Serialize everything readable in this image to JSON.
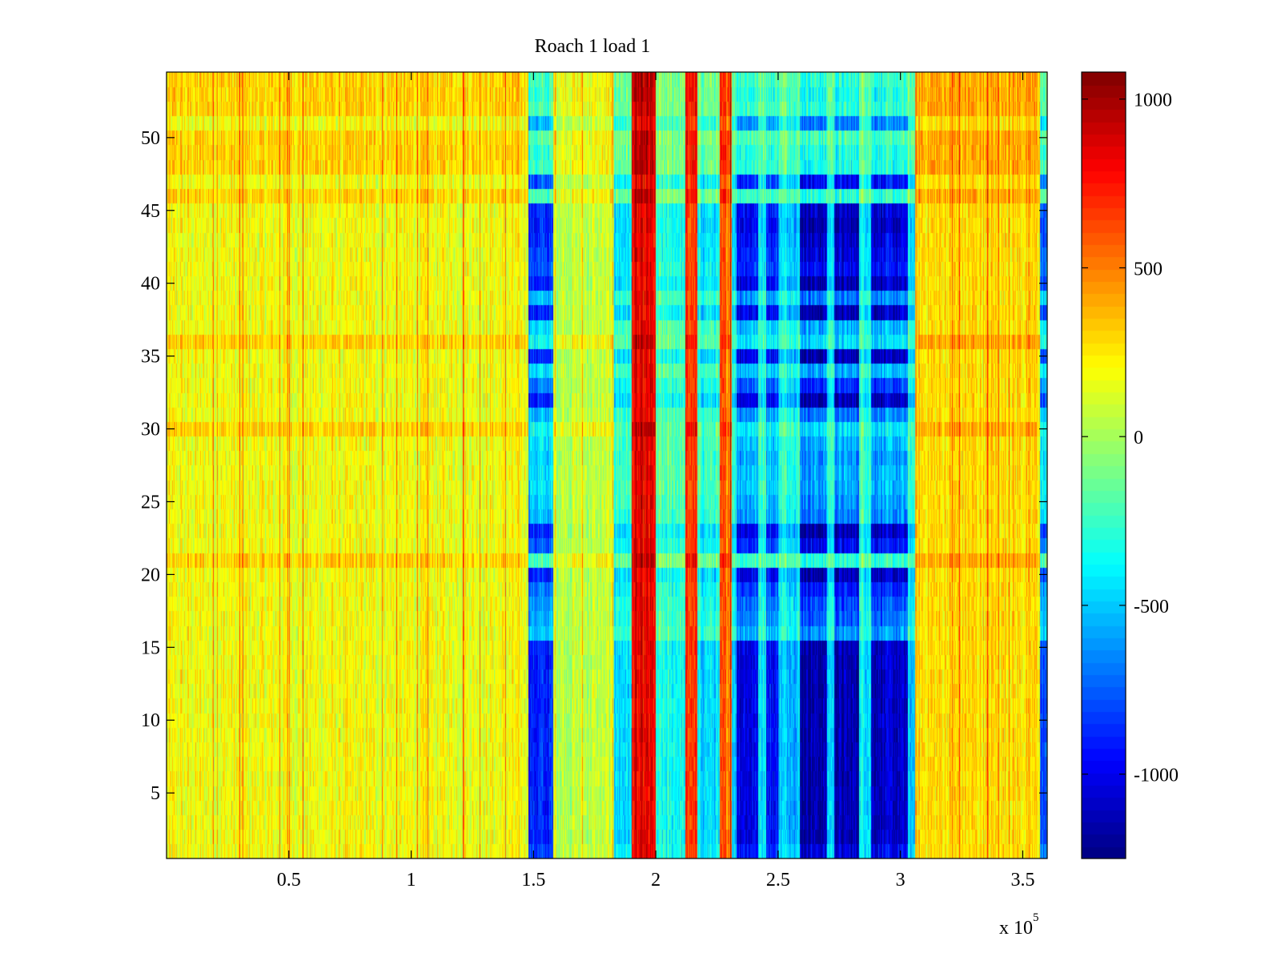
{
  "chart_data": {
    "type": "heatmap",
    "title": "Roach 1 load 1",
    "xlabel": "",
    "ylabel": "",
    "xlim": [
      0,
      360000
    ],
    "ylim": [
      0.5,
      54.5
    ],
    "x_exponent_label": "x 10",
    "x_exponent_power": "5",
    "x_ticks": [
      {
        "value": 50000,
        "label": "0.5"
      },
      {
        "value": 100000,
        "label": "1"
      },
      {
        "value": 150000,
        "label": "1.5"
      },
      {
        "value": 200000,
        "label": "2"
      },
      {
        "value": 250000,
        "label": "2.5"
      },
      {
        "value": 300000,
        "label": "3"
      },
      {
        "value": 350000,
        "label": "3.5"
      }
    ],
    "y_ticks": [
      {
        "value": 5,
        "label": "5"
      },
      {
        "value": 10,
        "label": "10"
      },
      {
        "value": 15,
        "label": "15"
      },
      {
        "value": 20,
        "label": "20"
      },
      {
        "value": 25,
        "label": "25"
      },
      {
        "value": 30,
        "label": "30"
      },
      {
        "value": 35,
        "label": "35"
      },
      {
        "value": 40,
        "label": "40"
      },
      {
        "value": 45,
        "label": "45"
      },
      {
        "value": 50,
        "label": "50"
      }
    ],
    "rows": 54,
    "colormap": "jet",
    "clim": [
      -1250,
      1080
    ],
    "colorbar_ticks": [
      {
        "value": 1000,
        "label": "1000"
      },
      {
        "value": 500,
        "label": "500"
      },
      {
        "value": 0,
        "label": "0"
      },
      {
        "value": -500,
        "label": "-500"
      },
      {
        "value": -1000,
        "label": "-1000"
      }
    ],
    "column_bands": [
      {
        "x": [
          0,
          148000
        ],
        "value": 180
      },
      {
        "x": [
          148000,
          158000
        ],
        "value": -900
      },
      {
        "x": [
          158000,
          183000
        ],
        "value": 60
      },
      {
        "x": [
          183000,
          190000
        ],
        "value": -450
      },
      {
        "x": [
          190000,
          200000
        ],
        "value": 800
      },
      {
        "x": [
          200000,
          212000
        ],
        "value": -350
      },
      {
        "x": [
          212000,
          217000
        ],
        "value": 650
      },
      {
        "x": [
          217000,
          226000
        ],
        "value": -450
      },
      {
        "x": [
          226000,
          231000
        ],
        "value": 550
      },
      {
        "x": [
          231000,
          233000
        ],
        "value": -500
      },
      {
        "x": [
          233000,
          242000
        ],
        "value": -1000
      },
      {
        "x": [
          242000,
          245000
        ],
        "value": -400
      },
      {
        "x": [
          245000,
          250000
        ],
        "value": -950
      },
      {
        "x": [
          250000,
          259000
        ],
        "value": -500
      },
      {
        "x": [
          259000,
          270000
        ],
        "value": -1150
      },
      {
        "x": [
          270000,
          273000
        ],
        "value": -450
      },
      {
        "x": [
          273000,
          283000
        ],
        "value": -1150
      },
      {
        "x": [
          283000,
          288000
        ],
        "value": -400
      },
      {
        "x": [
          288000,
          303000
        ],
        "value": -1100
      },
      {
        "x": [
          303000,
          306000
        ],
        "value": -500
      },
      {
        "x": [
          306000,
          357000
        ],
        "value": 280
      },
      {
        "x": [
          357000,
          360000
        ],
        "value": -800
      }
    ],
    "row_factors": [
      0.9,
      1.0,
      1.0,
      1.0,
      1.0,
      1.0,
      1.0,
      1.0,
      1.0,
      1.0,
      1.0,
      1.0,
      1.0,
      1.0,
      1.0,
      0.55,
      0.65,
      0.7,
      0.8,
      1.0,
      0.25,
      0.85,
      1.0,
      0.6,
      0.55,
      0.5,
      0.5,
      0.55,
      0.5,
      0.4,
      0.6,
      1.0,
      0.75,
      0.5,
      1.0,
      0.4,
      0.5,
      1.0,
      0.6,
      1.0,
      0.85,
      0.9,
      0.95,
      1.0,
      0.95,
      0.25,
      0.85,
      0.3,
      0.3,
      0.2,
      0.6,
      0.25,
      0.3,
      0.25
    ]
  }
}
